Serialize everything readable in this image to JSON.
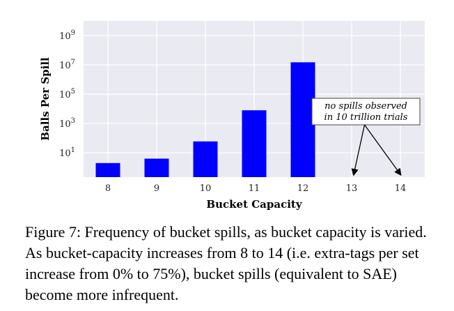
{
  "chart_data": {
    "type": "bar",
    "categories": [
      "8",
      "9",
      "10",
      "11",
      "12",
      "13",
      "14"
    ],
    "values": [
      2,
      4,
      60,
      8000,
      15000000,
      null,
      null
    ],
    "xlabel": "Bucket Capacity",
    "ylabel": "Balls Per Spill",
    "yscale": "log",
    "ylim": [
      0.22,
      10000000000
    ],
    "ytick_labels": [
      {
        "value": 10,
        "base": "10",
        "exp": "1"
      },
      {
        "value": 1000,
        "base": "10",
        "exp": "3"
      },
      {
        "value": 100000,
        "base": "10",
        "exp": "5"
      },
      {
        "value": 10000000,
        "base": "10",
        "exp": "7"
      },
      {
        "value": 1000000000,
        "base": "10",
        "exp": "9"
      }
    ],
    "bar_color": "#0000ff",
    "background_color": "#eaeaf2",
    "grid": true,
    "annotation": {
      "lines": [
        "no spills observed",
        "in 10 trillion trials"
      ],
      "targets": [
        "13",
        "14"
      ]
    }
  },
  "caption": "Figure 7: Frequency of bucket spills, as bucket capacity is varied. As bucket-capacity increases from 8 to 14 (i.e. extra-tags per set increase from 0% to 75%), bucket spills (equivalent to SAE) become more infrequent."
}
